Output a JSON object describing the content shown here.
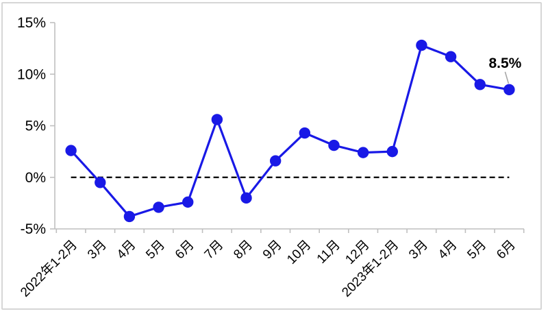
{
  "chart_data": {
    "type": "line",
    "categories": [
      "2022年1-2月",
      "3月",
      "4月",
      "5月",
      "6月",
      "7月",
      "8月",
      "9月",
      "10月",
      "11月",
      "12月",
      "2023年1-2月",
      "3月",
      "4月",
      "5月",
      "6月"
    ],
    "values": [
      2.6,
      -0.5,
      -3.8,
      -2.9,
      -2.4,
      5.6,
      -2.0,
      1.6,
      4.3,
      3.1,
      2.4,
      2.5,
      12.8,
      11.7,
      9.0,
      8.5
    ],
    "y_tick_labels": [
      "15%",
      "10%",
      "5%",
      "0%",
      "-5%"
    ],
    "y_tick_values": [
      15,
      10,
      5,
      0,
      -5
    ],
    "ylim": [
      -5,
      15
    ],
    "xlabel": "",
    "ylabel": "",
    "title": "",
    "legend_position": "none",
    "grid": false,
    "zero_line_style": "dashed",
    "annotation": {
      "text": "8.5%",
      "category_index": 15,
      "value": 8.5
    },
    "colors": {
      "series_line": "#1919e6",
      "marker_fill": "#1919e6",
      "axis_line": "#bfbfbf",
      "zero_line": "#000000",
      "label_text": "#000000",
      "annotation_text": "#1a1a1a",
      "annotation_leader": "#a6a6a6",
      "frame_border": "#d6d6d6",
      "background": "#ffffff"
    }
  }
}
